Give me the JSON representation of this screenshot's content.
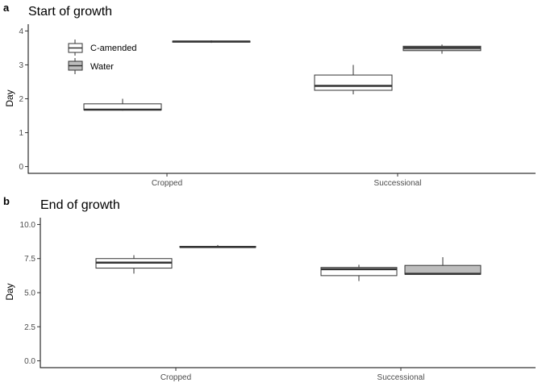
{
  "colors": {
    "c_amended_fill": "#ffffff",
    "water_fill": "#bdbdbd",
    "stroke": "#333333",
    "axis": "#000000"
  },
  "legend": {
    "placement": "top-left inside panel a",
    "items": [
      {
        "label": "C-amended",
        "color": "#ffffff"
      },
      {
        "label": "Water",
        "color": "#bdbdbd"
      }
    ]
  },
  "chart_data": [
    {
      "type": "boxplot",
      "panel_label": "a",
      "title": "Start of growth",
      "xlabel": "",
      "ylabel": "Day",
      "ylim": [
        -0.2,
        4.2
      ],
      "yticks": [
        0,
        1,
        2,
        3,
        4
      ],
      "ytick_labels": [
        "0",
        "1",
        "2",
        "3",
        "4"
      ],
      "grid": false,
      "categories": [
        "Cropped",
        "Successional"
      ],
      "series": [
        {
          "name": "C-amended",
          "color": "#ffffff",
          "boxes": [
            {
              "category": "Cropped",
              "min": 1.65,
              "q1": 1.67,
              "median": 1.68,
              "q3": 1.85,
              "max": 2.0
            },
            {
              "category": "Successional",
              "min": 2.13,
              "q1": 2.25,
              "median": 2.38,
              "q3": 2.7,
              "max": 3.0
            }
          ]
        },
        {
          "name": "Water",
          "color": "#bdbdbd",
          "boxes": [
            {
              "category": "Cropped",
              "min": 3.65,
              "q1": 3.67,
              "median": 3.69,
              "q3": 3.7,
              "max": 3.72
            },
            {
              "category": "Successional",
              "min": 3.33,
              "q1": 3.42,
              "median": 3.5,
              "q3": 3.55,
              "max": 3.6
            }
          ]
        }
      ]
    },
    {
      "type": "boxplot",
      "panel_label": "b",
      "title": "End of growth",
      "xlabel": "",
      "ylabel": "Day",
      "ylim": [
        -0.5,
        10.5
      ],
      "yticks": [
        0,
        2.5,
        5,
        7.5,
        10
      ],
      "ytick_labels": [
        "0.0",
        "2.5",
        "5.0",
        "7.5",
        "10.0"
      ],
      "grid": false,
      "categories": [
        "Cropped",
        "Successional"
      ],
      "series": [
        {
          "name": "C-amended",
          "color": "#ffffff",
          "boxes": [
            {
              "category": "Cropped",
              "min": 6.4,
              "q1": 6.8,
              "median": 7.2,
              "q3": 7.5,
              "max": 7.75
            },
            {
              "category": "Successional",
              "min": 5.85,
              "q1": 6.25,
              "median": 6.72,
              "q3": 6.85,
              "max": 7.05
            }
          ]
        },
        {
          "name": "Water",
          "color": "#bdbdbd",
          "boxes": [
            {
              "category": "Cropped",
              "min": 8.3,
              "q1": 8.32,
              "median": 8.35,
              "q3": 8.4,
              "max": 8.5
            },
            {
              "category": "Successional",
              "min": 6.35,
              "q1": 6.35,
              "median": 6.38,
              "q3": 7.0,
              "max": 7.6
            }
          ]
        }
      ]
    }
  ]
}
